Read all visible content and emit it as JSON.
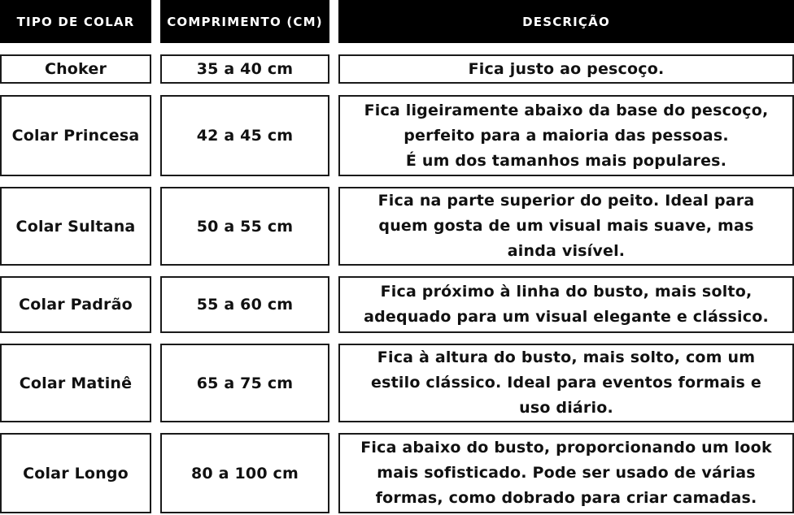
{
  "colors": {
    "header_bg": "#000000",
    "header_text": "#ffffff",
    "cell_bg": "#ffffff",
    "cell_border": "#1a1a1a",
    "cell_text": "#111111"
  },
  "chart_data": {
    "type": "table",
    "columns": [
      "TIPO DE COLAR",
      "COMPRIMENTO (CM)",
      "DESCRIÇÃO"
    ],
    "rows": [
      {
        "tipo": "Choker",
        "comprimento": "35 a 40 cm",
        "descricao": [
          "Fica justo ao pescoço."
        ]
      },
      {
        "tipo": "Colar Princesa",
        "comprimento": "42 a 45 cm",
        "descricao": [
          "Fica ligeiramente abaixo da base do pescoço,",
          "perfeito para a maioria das pessoas.",
          "É um dos tamanhos mais populares."
        ]
      },
      {
        "tipo": "Colar Sultana",
        "comprimento": "50 a 55 cm",
        "descricao": [
          "Fica na parte superior do peito. Ideal para",
          "quem gosta de um visual mais suave, mas",
          "ainda visível."
        ]
      },
      {
        "tipo": "Colar Padrão",
        "comprimento": "55 a 60 cm",
        "descricao": [
          "Fica próximo à linha do busto, mais solto,",
          "adequado para um visual elegante e clássico."
        ]
      },
      {
        "tipo": "Colar Matinê",
        "comprimento": "65 a 75 cm",
        "descricao": [
          "Fica à altura do busto, mais solto, com um",
          "estilo clássico. Ideal para eventos formais e",
          "uso diário."
        ]
      },
      {
        "tipo": "Colar Longo",
        "comprimento": "80 a 100 cm",
        "descricao": [
          "Fica abaixo do busto, proporcionando um look",
          "mais sofisticado. Pode ser usado de várias",
          "formas, como dobrado para criar camadas."
        ]
      }
    ]
  }
}
